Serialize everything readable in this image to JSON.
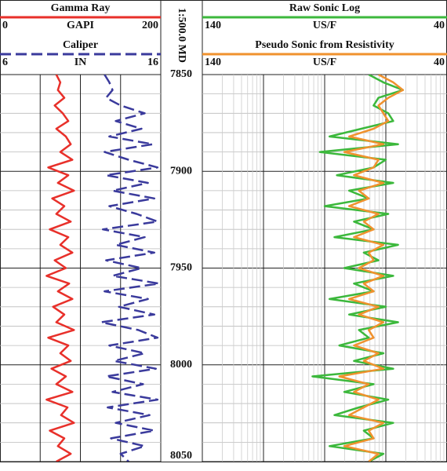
{
  "chart_data": {
    "type": "line",
    "scale_label": "1:500.0 MD",
    "ylim": [
      7850,
      8050
    ],
    "yticks": [
      7850,
      7900,
      7950,
      8000,
      8050
    ],
    "depth": [
      7850,
      7854,
      7858,
      7862,
      7866,
      7870,
      7874,
      7878,
      7882,
      7886,
      7890,
      7894,
      7898,
      7902,
      7906,
      7910,
      7914,
      7918,
      7922,
      7926,
      7930,
      7934,
      7938,
      7942,
      7946,
      7950,
      7954,
      7958,
      7962,
      7966,
      7970,
      7974,
      7978,
      7982,
      7986,
      7990,
      7994,
      7998,
      8002,
      8006,
      8010,
      8014,
      8018,
      8022,
      8026,
      8030,
      8034,
      8038,
      8042,
      8046,
      8050
    ],
    "tracks": [
      {
        "series": [
          {
            "name": "Gamma Ray",
            "unit": "GAPI",
            "color": "#e8302a",
            "dash": false,
            "xlim": [
              0,
              200
            ],
            "values": [
              70,
              75,
              72,
              80,
              68,
              78,
              85,
              70,
              82,
              88,
              75,
              90,
              60,
              85,
              72,
              92,
              65,
              80,
              70,
              88,
              62,
              85,
              75,
              90,
              68,
              82,
              58,
              86,
              72,
              90,
              66,
              80,
              70,
              92,
              60,
              85,
              75,
              88,
              64,
              82,
              70,
              90,
              58,
              84,
              76,
              92,
              62,
              80,
              72,
              88,
              70
            ]
          },
          {
            "name": "Caliper",
            "unit": "IN",
            "color": "#3a3a9c",
            "dash": true,
            "xlim": [
              6,
              16
            ],
            "values": [
              12.5,
              12.8,
              13.0,
              12.6,
              13.5,
              15.0,
              13.2,
              14.8,
              12.8,
              15.5,
              12.5,
              14.0,
              15.8,
              12.6,
              15.2,
              13.0,
              15.6,
              12.8,
              14.5,
              15.8,
              12.4,
              15.0,
              13.2,
              15.6,
              12.6,
              14.8,
              13.0,
              15.9,
              12.5,
              15.2,
              13.4,
              15.6,
              12.3,
              14.6,
              15.8,
              12.8,
              15.0,
              13.1,
              15.7,
              12.6,
              14.9,
              13.0,
              15.8,
              12.7,
              15.3,
              13.2,
              15.6,
              12.9,
              15.0,
              13.5,
              14.0
            ]
          }
        ]
      },
      {
        "series": [
          {
            "name": "Raw Sonic Log",
            "unit": "US/F",
            "color": "#3cb83c",
            "dash": false,
            "xlim": [
              140,
              40
            ],
            "values": [
              72,
              66,
              58,
              68,
              70,
              64,
              62,
              75,
              88,
              60,
              92,
              65,
              70,
              85,
              62,
              80,
              72,
              90,
              64,
              78,
              70,
              86,
              60,
              74,
              68,
              82,
              62,
              78,
              70,
              88,
              65,
              80,
              60,
              76,
              72,
              84,
              66,
              78,
              62,
              95,
              70,
              82,
              64,
              76,
              86,
              62,
              74,
              70,
              88,
              66,
              72
            ]
          },
          {
            "name": "Pseudo Sonic from Resistivity",
            "unit": "US/F",
            "color": "#f0922e",
            "dash": false,
            "xlim": [
              140,
              40
            ],
            "values": [
              68,
              62,
              58,
              64,
              68,
              66,
              64,
              70,
              80,
              66,
              82,
              68,
              70,
              78,
              66,
              76,
              72,
              80,
              68,
              74,
              70,
              78,
              66,
              72,
              70,
              76,
              66,
              74,
              70,
              80,
              68,
              76,
              66,
              72,
              70,
              78,
              68,
              74,
              66,
              84,
              72,
              78,
              68,
              74,
              80,
              66,
              72,
              70,
              82,
              68,
              72
            ]
          }
        ]
      }
    ]
  }
}
